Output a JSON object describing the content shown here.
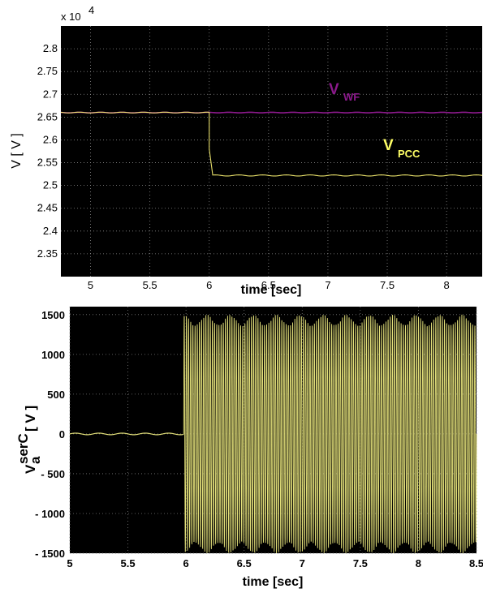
{
  "chart_data": [
    {
      "type": "line",
      "exponent_label": "x 10",
      "exponent_power": "4",
      "xlabel": "time [sec]",
      "ylabel": "V [ V ]",
      "xlim": [
        4.75,
        8.3
      ],
      "ylim": [
        2.3,
        2.85
      ],
      "x_ticks": [
        "5",
        "5.5",
        "6",
        "6.5",
        "7",
        "7.5",
        "8"
      ],
      "y_ticks": [
        "2.35",
        "2.4",
        "2.45",
        "2.5",
        "2.55",
        "2.6",
        "2.65",
        "2.7",
        "2.75",
        "2.8"
      ],
      "grid": true,
      "background": "#000000",
      "series": [
        {
          "name": "V_WF",
          "label_main": "V",
          "label_sub": "WF",
          "color": "#8c1a8c",
          "label_color": "#8c1a8c",
          "x": [
            4.75,
            8.3
          ],
          "values": [
            2.66,
            2.66
          ]
        },
        {
          "name": "V_PCC",
          "label_main": "V",
          "label_sub": "PCC",
          "color": "#e8e06a",
          "label_color": "#ffff66",
          "x": [
            4.75,
            6.0,
            6.0,
            6.03,
            8.3
          ],
          "values": [
            2.66,
            2.66,
            2.58,
            2.522,
            2.522
          ]
        }
      ]
    },
    {
      "type": "line",
      "xlabel": "time [sec]",
      "ylabel_main": "V",
      "ylabel_sub": "a",
      "ylabel_sup": "serC",
      "ylabel_unit": "[ V ]",
      "xlim": [
        5,
        8.5
      ],
      "ylim": [
        -1500,
        1600
      ],
      "x_ticks": [
        "5",
        "5.5",
        "6",
        "6.5",
        "7",
        "7.5",
        "8",
        "8.5"
      ],
      "y_ticks": [
        "1500",
        "1000",
        "500",
        "0",
        "- 500",
        "- 1000",
        "- 1500"
      ],
      "grid": true,
      "background": "#000000",
      "series": [
        {
          "color": "#e3e07a",
          "pre_switch": {
            "x": [
              5,
              5.98
            ],
            "value": 0
          },
          "post_switch": {
            "x": [
              5.98,
              8.5
            ],
            "amplitude_min": 1370,
            "amplitude_max": 1500,
            "envelope_period": 0.2
          }
        }
      ]
    }
  ]
}
